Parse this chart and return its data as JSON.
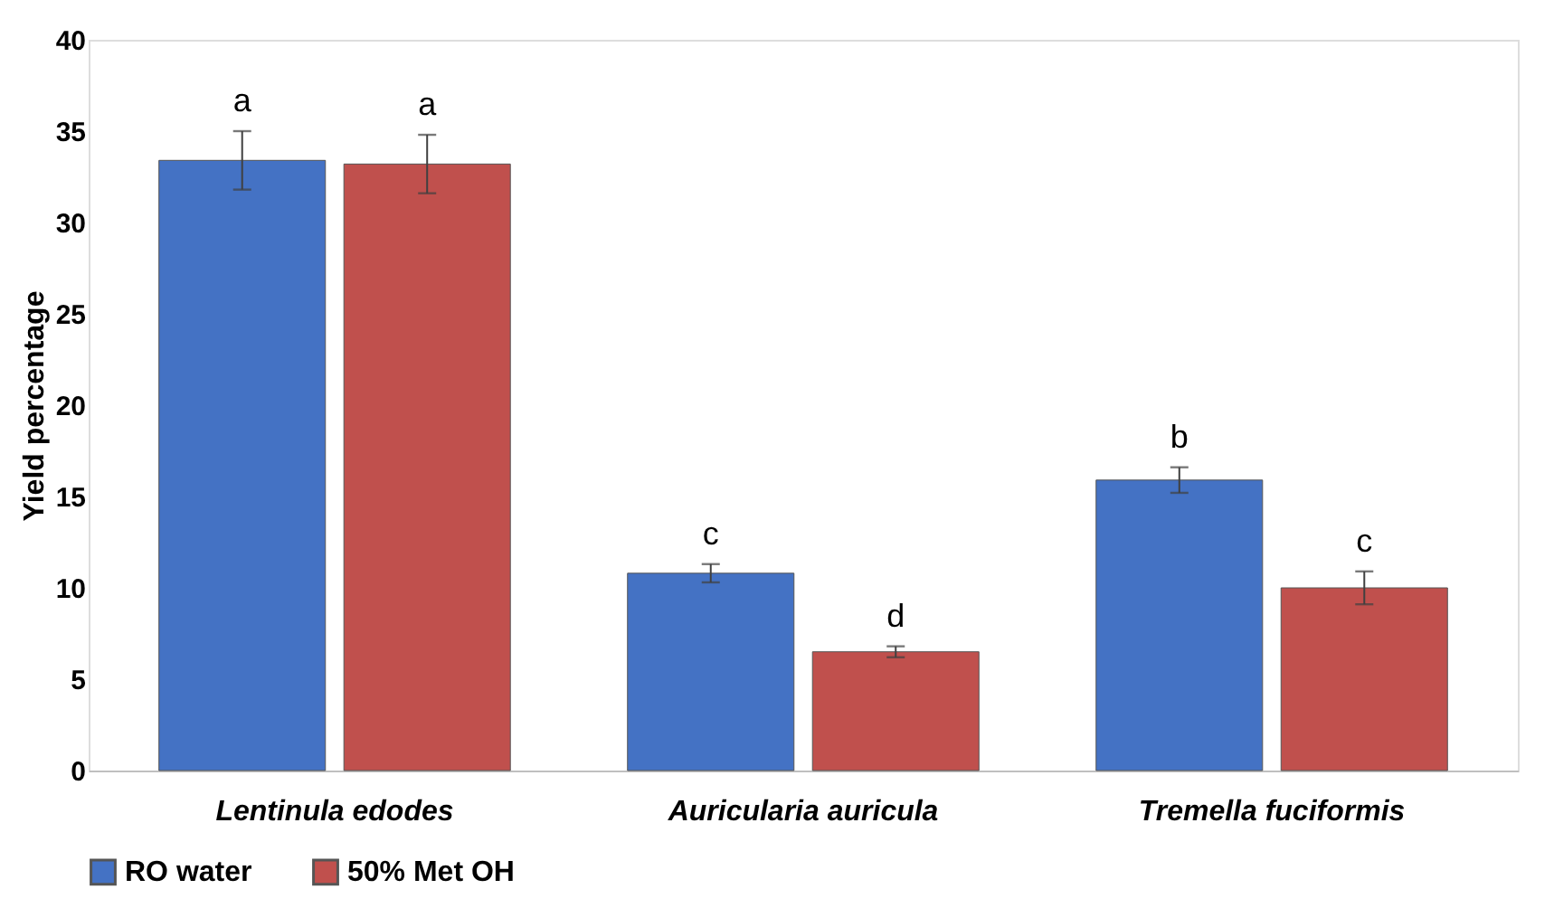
{
  "chart_data": {
    "type": "bar",
    "ylabel": "Yield percentage",
    "categories": [
      "Lentinula edodes",
      "Auricularia auricula",
      "Tremella fuciformis"
    ],
    "series": [
      {
        "name": "RO water",
        "color": "#4472c4",
        "values": [
          33.4,
          10.8,
          15.9
        ],
        "errors": [
          1.6,
          0.5,
          0.7
        ]
      },
      {
        "name": "50% Met OH",
        "color": "#c0504d",
        "values": [
          33.2,
          6.5,
          10.0
        ],
        "errors": [
          1.6,
          0.3,
          0.9
        ]
      }
    ],
    "annotations": [
      "a",
      "a",
      "c",
      "d",
      "b",
      "c"
    ],
    "ylim": [
      0,
      40
    ],
    "yticks": [
      0,
      5,
      10,
      15,
      20,
      25,
      30,
      35,
      40
    ],
    "grid": false,
    "legend": "bottom"
  }
}
